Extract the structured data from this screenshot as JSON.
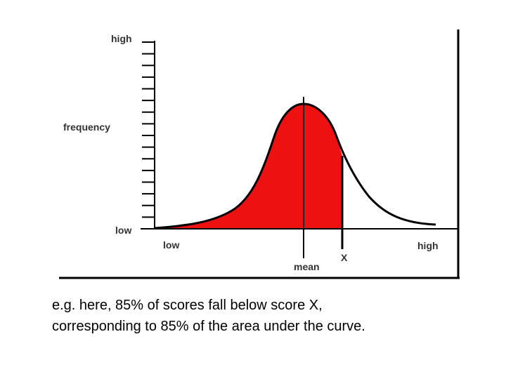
{
  "diagram": {
    "y_axis": {
      "top_label": "high",
      "middle_label": "frequency",
      "bottom_label": "low"
    },
    "x_axis": {
      "left_label": "low",
      "right_label": "high",
      "mean_label": "mean",
      "score_label": "X"
    },
    "shaded_percent": 85,
    "colors": {
      "shade": "#ee1111",
      "curve": "#000000",
      "frame": "#000000",
      "text": "#333333"
    }
  },
  "caption": {
    "line1": "e.g. here, 85% of scores fall below score X,",
    "line2": "corresponding to 85% of the area under the curve."
  }
}
